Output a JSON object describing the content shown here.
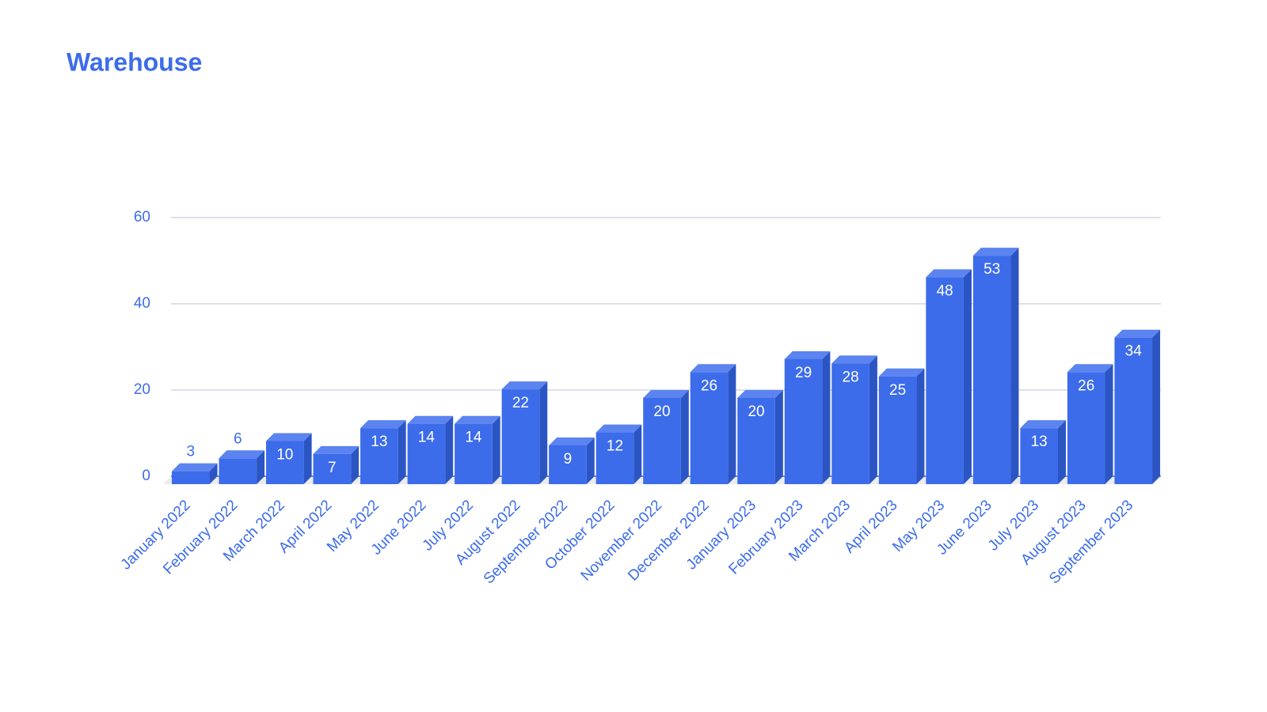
{
  "chart_data": {
    "type": "bar3d",
    "title": "Warehouse",
    "categories": [
      "January 2022",
      "February 2022",
      "March 2022",
      "April 2022",
      "May 2022",
      "June 2022",
      "July 2022",
      "August 2022",
      "September 2022",
      "October 2022",
      "November 2022",
      "December 2022",
      "January 2023",
      "February 2023",
      "March 2023",
      "April 2023",
      "May 2023",
      "June 2023",
      "July 2023",
      "August 2023",
      "September 2023"
    ],
    "values": [
      3,
      6,
      10,
      7,
      13,
      14,
      14,
      22,
      9,
      12,
      20,
      26,
      20,
      29,
      28,
      25,
      48,
      53,
      13,
      26,
      34
    ],
    "color": "#3c6cea",
    "ylim": [
      0,
      60
    ],
    "yticks": [
      0,
      20,
      40,
      60
    ],
    "grid": true
  }
}
